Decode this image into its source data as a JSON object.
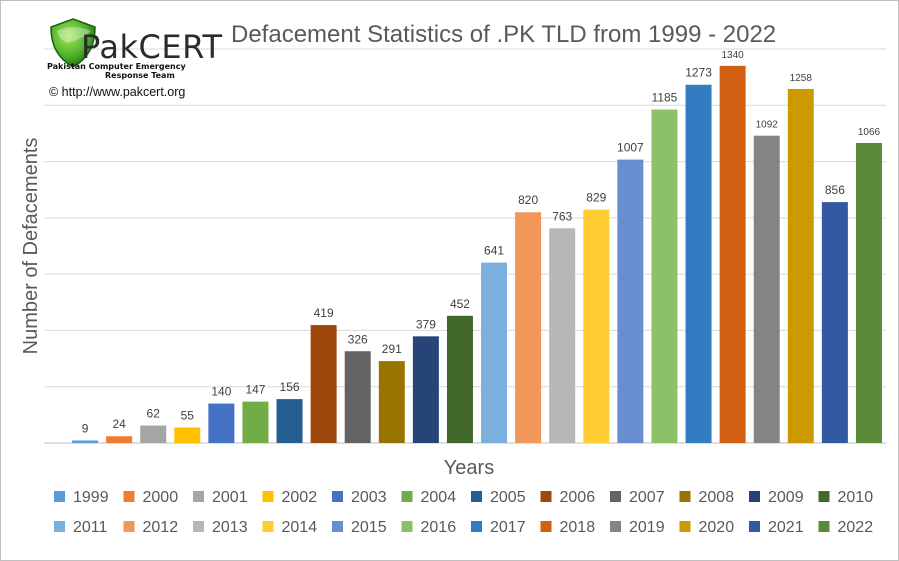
{
  "logo": {
    "wordmark": "PakCERT",
    "subtitle_line1": "Pakistan Computer Emergency",
    "subtitle_line2": "Response Team",
    "copyright": "© http://www.pakcert.org",
    "colors": {
      "shield_dark": "#2e8b1e",
      "shield_light": "#7fd13b"
    }
  },
  "chart_data": {
    "type": "bar",
    "title": "Defacement Statistics of .PK TLD from 1999 - 2022",
    "xlabel": "Years",
    "ylabel": "Number of Defacements",
    "ylim": [
      0,
      1400
    ],
    "grid": true,
    "legend_position": "bottom",
    "categories": [
      "1999",
      "2000",
      "2001",
      "2002",
      "2003",
      "2004",
      "2005",
      "2006",
      "2007",
      "2008",
      "2009",
      "2010",
      "2011",
      "2012",
      "2013",
      "2014",
      "2015",
      "2016",
      "2017",
      "2018",
      "2019",
      "2020",
      "2021",
      "2022"
    ],
    "values": [
      9,
      24,
      62,
      55,
      140,
      147,
      156,
      419,
      326,
      291,
      379,
      452,
      641,
      820,
      763,
      829,
      1007,
      1185,
      1273,
      1340,
      1092,
      1258,
      856,
      1066
    ],
    "colors": [
      "#5b9bd5",
      "#ed7d31",
      "#a5a5a5",
      "#ffc000",
      "#4472c4",
      "#70ad47",
      "#255e91",
      "#9e480e",
      "#636363",
      "#997300",
      "#264478",
      "#43682b",
      "#7cafdd",
      "#f1975a",
      "#b7b7b7",
      "#ffcd33",
      "#698ed0",
      "#8cc168",
      "#327dc2",
      "#d26012",
      "#848484",
      "#cc9a00",
      "#335aa1",
      "#5a8a39"
    ]
  }
}
